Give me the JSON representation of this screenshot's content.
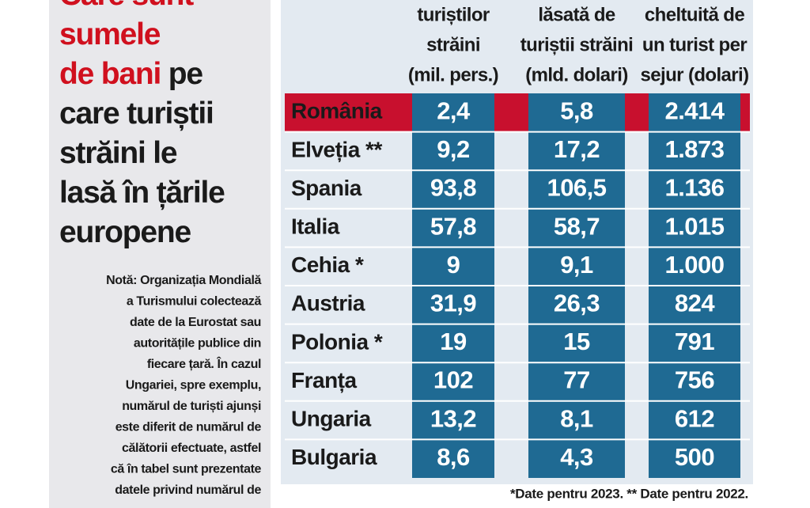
{
  "title_lines": [
    [
      {
        "text": "Care sunt",
        "color": "#d0101e"
      }
    ],
    [
      {
        "text": "sumele",
        "color": "#d0101e"
      }
    ],
    [
      {
        "text": "de bani",
        "color": "#d0101e"
      },
      {
        "text": "pe",
        "color": "#1a1a1a"
      }
    ],
    [
      {
        "text": "care turiștii",
        "color": "#1a1a1a"
      }
    ],
    [
      {
        "text": "străini le",
        "color": "#1a1a1a"
      }
    ],
    [
      {
        "text": "lasă în țările",
        "color": "#1a1a1a"
      }
    ],
    [
      {
        "text": "europene",
        "color": "#1a1a1a"
      }
    ]
  ],
  "note_lines": [
    "Notă: Organizația Mondială",
    "a Turismului colectează",
    "date de la Eurostat sau",
    "autoritățile publice din",
    "fiecare țară. În cazul",
    "Ungariei, spre exemplu,",
    "numărul de turiști ajunși",
    "este diferit de numărul de",
    "călătorii efectuate, astfel",
    "că în tabel sunt prezentate",
    "datele privind numărul de"
  ],
  "table": {
    "headers": [
      [
        "turiștilor",
        "străini",
        "(mil. pers.)"
      ],
      [
        "lăsată de",
        "turiștii străini",
        "(mld. dolari)"
      ],
      [
        "cheltuită de",
        "un turist per",
        "sejur (dolari)"
      ]
    ],
    "rows": [
      [
        "România",
        "2,4",
        "5,8",
        "2.414"
      ],
      [
        "Elveția **",
        "9,2",
        "17,2",
        "1.873"
      ],
      [
        "Spania",
        "93,8",
        "106,5",
        "1.136"
      ],
      [
        "Italia",
        "57,8",
        "58,7",
        "1.015"
      ],
      [
        "Cehia *",
        "9",
        "9,1",
        "1.000"
      ],
      [
        "Austria",
        "31,9",
        "26,3",
        "824"
      ],
      [
        "Polonia *",
        "19",
        "15",
        "791"
      ],
      [
        "Franța",
        "102",
        "77",
        "756"
      ],
      [
        "Ungaria",
        "13,2",
        "8,1",
        "612"
      ],
      [
        "Bulgaria",
        "8,6",
        "4,3",
        "500"
      ]
    ]
  },
  "footnote": "*Date pentru 2023. ** Date pentru 2022."
}
